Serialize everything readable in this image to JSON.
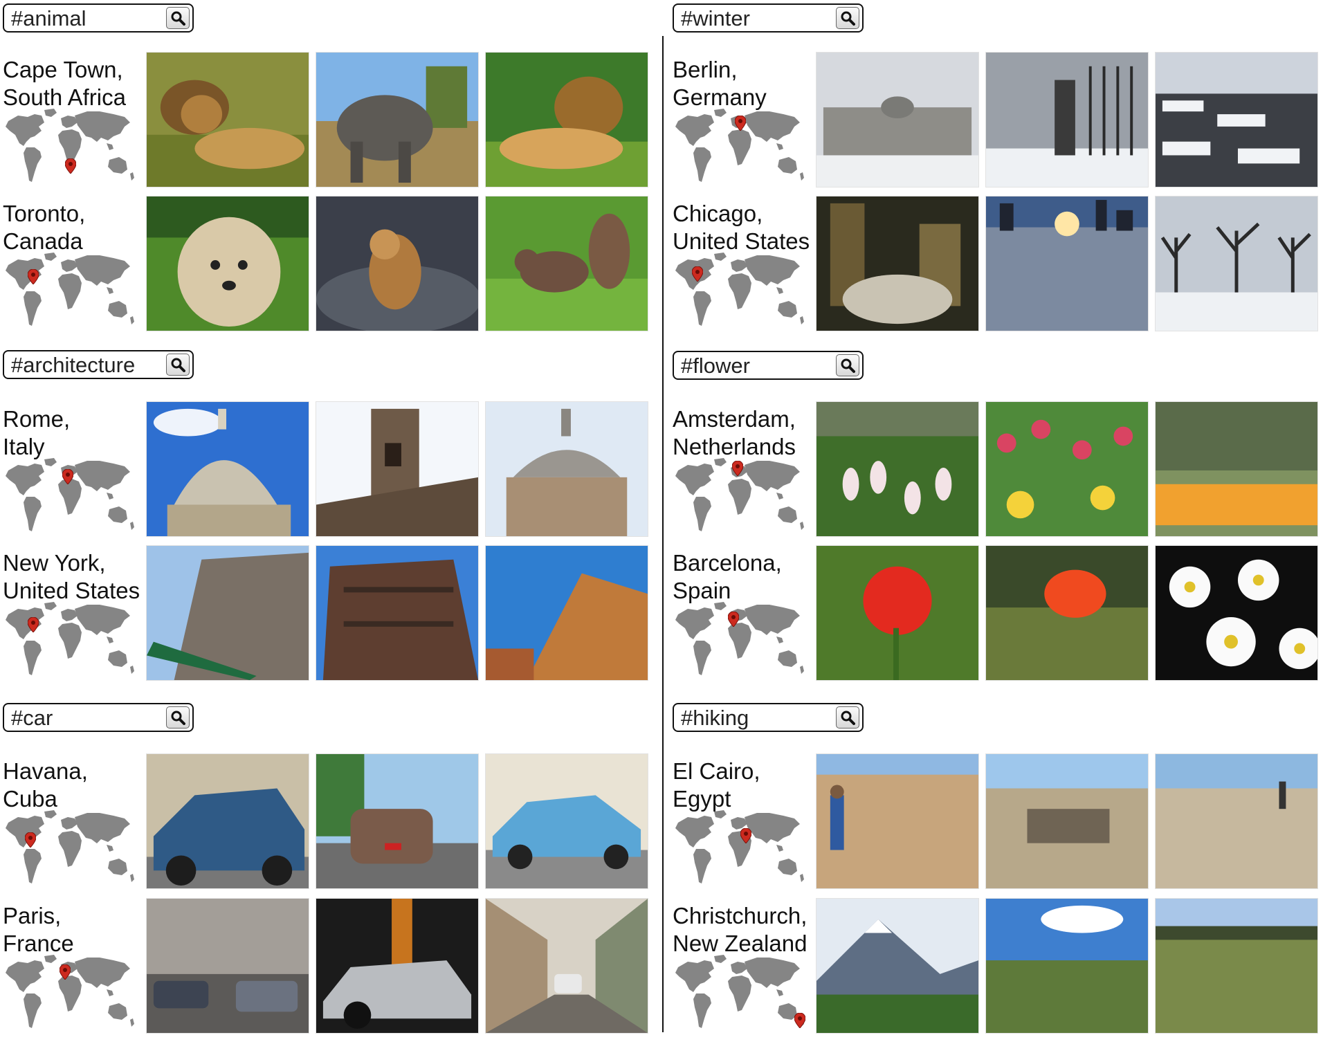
{
  "sections": [
    {
      "query": "#animal",
      "entries": [
        {
          "city_line1": "Cape Town,",
          "city_line2": "South Africa",
          "photos": [
            "lion-pair",
            "elephant",
            "lion-grass"
          ]
        },
        {
          "city_line1": "Toronto,",
          "city_line2": "Canada",
          "photos": [
            "dog",
            "chipmunk",
            "squirrel"
          ]
        }
      ]
    },
    {
      "query": "#winter",
      "entries": [
        {
          "city_line1": "Berlin,",
          "city_line2": "Germany",
          "photos": [
            "reichstag-snow",
            "fence-snow",
            "memorial-snow"
          ]
        },
        {
          "city_line1": "Chicago,",
          "city_line2": "United States",
          "photos": [
            "bean-night",
            "snow-sunset",
            "bare-trees"
          ]
        }
      ]
    },
    {
      "query": "#architecture",
      "entries": [
        {
          "city_line1": "Rome,",
          "city_line2": "Italy",
          "photos": [
            "dome",
            "tower-bridge",
            "church"
          ]
        },
        {
          "city_line1": "New York,",
          "city_line2": "United States",
          "photos": [
            "broadway-building",
            "brick-building",
            "orange-building"
          ]
        }
      ]
    },
    {
      "query": "#flower",
      "entries": [
        {
          "city_line1": "Amsterdam,",
          "city_line2": "Netherlands",
          "photos": [
            "white-red-tulips",
            "tulip-field",
            "orange-tulips"
          ]
        },
        {
          "city_line1": "Barcelona,",
          "city_line2": "Spain",
          "photos": [
            "red-rose",
            "red-poppy",
            "white-daisies"
          ]
        }
      ]
    },
    {
      "query": "#car",
      "entries": [
        {
          "city_line1": "Havana,",
          "city_line2": "Cuba",
          "photos": [
            "blue-classic-car",
            "brown-classic-car",
            "light-blue-car"
          ]
        },
        {
          "city_line1": "Paris,",
          "city_line2": "France",
          "photos": [
            "traffic-street",
            "silver-convertible",
            "narrow-street"
          ]
        }
      ]
    },
    {
      "query": "#hiking",
      "entries": [
        {
          "city_line1": "El Cairo,",
          "city_line2": "Egypt",
          "photos": [
            "desert-hiker",
            "ruins-hikers",
            "dirt-road"
          ]
        },
        {
          "city_line1": "Christchurch,",
          "city_line2": "New Zealand",
          "photos": [
            "snow-mountain",
            "valley-vista",
            "scrub-hills"
          ]
        }
      ]
    }
  ],
  "icons": {
    "search": "magnifier-icon",
    "map": "world-map-icon",
    "pin": "map-pin-icon"
  },
  "colors": {
    "map": "#858585",
    "pin": "#cc2a1f",
    "border": "#111111"
  }
}
